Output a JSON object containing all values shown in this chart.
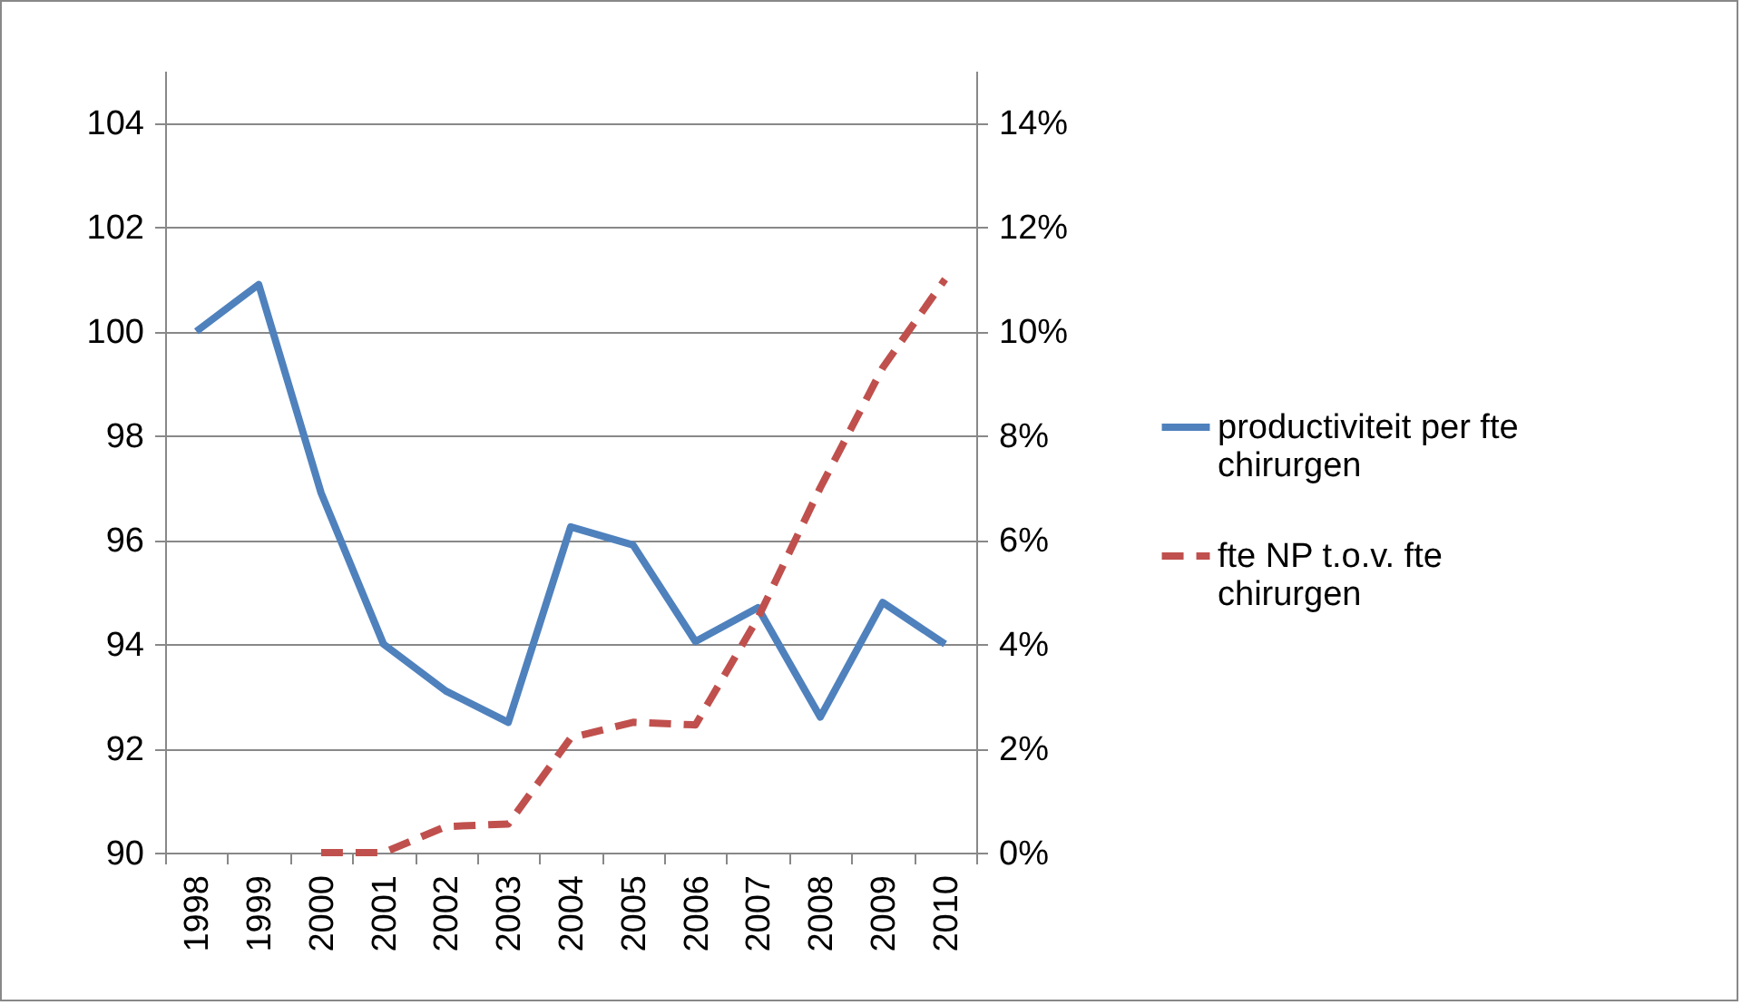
{
  "chart_data": {
    "type": "line",
    "categories": [
      "1998",
      "1999",
      "2000",
      "2001",
      "2002",
      "2003",
      "2004",
      "2005",
      "2006",
      "2007",
      "2008",
      "2009",
      "2010"
    ],
    "series": [
      {
        "name": "productiviteit per fte chirurgen",
        "color": "#4f81bd",
        "line_style": "solid",
        "values": [
          100,
          100.9,
          96.9,
          94.0,
          93.1,
          92.5,
          96.25,
          95.9,
          94.05,
          94.7,
          92.6,
          94.8,
          94.0
        ]
      },
      {
        "name": "fte NP t.o.v. fte chirurgen",
        "color": "#c0504d",
        "line_style": "dashed",
        "axis": "y2",
        "values": [
          null,
          null,
          0,
          0,
          0.5,
          0.55,
          2.2,
          2.5,
          2.45,
          4.5,
          7.0,
          9.3,
          11.0
        ]
      }
    ],
    "ylim": [
      90,
      105
    ],
    "yticks": [
      90,
      92,
      94,
      96,
      98,
      100,
      102,
      104
    ],
    "y2lim": [
      0,
      15
    ],
    "y2ticks": [
      {
        "value": 0,
        "label": "0%"
      },
      {
        "value": 2,
        "label": "2%"
      },
      {
        "value": 4,
        "label": "4%"
      },
      {
        "value": 6,
        "label": "6%"
      },
      {
        "value": 8,
        "label": "8%"
      },
      {
        "value": 10,
        "label": "10%"
      },
      {
        "value": 12,
        "label": "12%"
      },
      {
        "value": 14,
        "label": "14%"
      }
    ],
    "grid": "y",
    "legend": "right"
  }
}
